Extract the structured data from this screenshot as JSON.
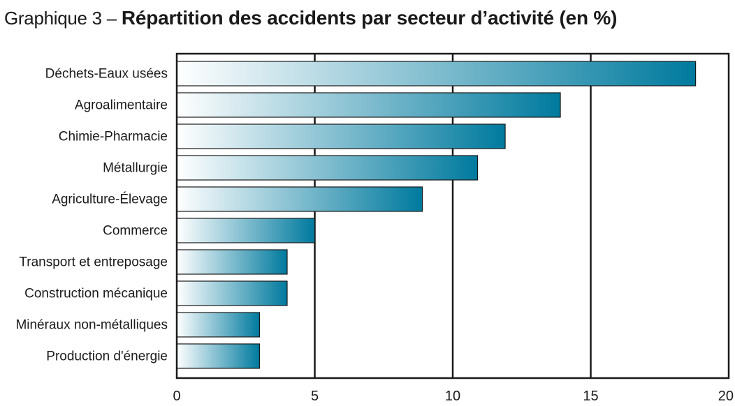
{
  "title": {
    "prefix": "Graphique 3 – ",
    "main": "Répartition des accidents par secteur d’activité (en %)"
  },
  "colors": {
    "bar_start": "#ffffff",
    "bar_end": "#007a9e",
    "bar_outline": "#1a1a1a",
    "grid": "#1a1a1a"
  },
  "chart_data": {
    "type": "bar",
    "orientation": "horizontal",
    "title": "Répartition des accidents par secteur d’activité (en %)",
    "categories": [
      "Déchets-Eaux usées",
      "Agroalimentaire",
      "Chimie-Pharmacie",
      "Métallurgie",
      "Agriculture-Élevage",
      "Commerce",
      "Transport et entreposage",
      "Construction mécanique",
      "Minéraux non-métalliques",
      "Production d'énergie"
    ],
    "values": [
      18.8,
      13.9,
      11.9,
      10.9,
      8.9,
      5,
      4,
      4,
      3,
      3
    ],
    "xlim": [
      0,
      20
    ],
    "xticks": [
      0,
      5,
      10,
      15,
      20
    ],
    "xtick_labels": [
      "0",
      "5",
      "10",
      "15",
      "20"
    ],
    "grid": true,
    "legend": "none"
  }
}
